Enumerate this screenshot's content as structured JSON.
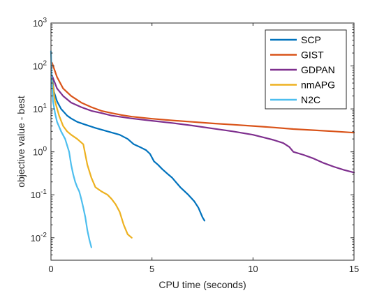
{
  "chart_data": {
    "type": "line",
    "xlabel": "CPU time (seconds)",
    "ylabel": "objective value - best",
    "xlim": [
      0,
      15
    ],
    "ylim": [
      0.003,
      1000
    ],
    "yscale": "log",
    "grid": false,
    "legend_position": "top-right",
    "x_ticks": [
      0,
      5,
      10,
      15
    ],
    "x_tick_labels": [
      "0",
      "5",
      "10",
      "15"
    ],
    "y_ticks": [
      0.01,
      0.1,
      1,
      10,
      100,
      1000
    ],
    "y_tick_labels": [
      {
        "base": "10",
        "exp": "-2"
      },
      {
        "base": "10",
        "exp": "-1"
      },
      {
        "base": "10",
        "exp": "0"
      },
      {
        "base": "10",
        "exp": "1"
      },
      {
        "base": "10",
        "exp": "2"
      },
      {
        "base": "10",
        "exp": "3"
      }
    ],
    "series": [
      {
        "name": "SCP",
        "color": "#0072BD",
        "x": [
          0.05,
          0.15,
          0.3,
          0.5,
          0.8,
          1.0,
          1.3,
          1.7,
          2.2,
          2.8,
          3.4,
          3.8,
          4.1,
          4.4,
          4.7,
          4.9,
          5.1,
          5.3,
          5.5,
          5.8,
          6.0,
          6.4,
          6.8,
          7.1,
          7.3,
          7.5,
          7.6
        ],
        "y": [
          60,
          25,
          15,
          10,
          7,
          6,
          5,
          4.3,
          3.6,
          3.0,
          2.5,
          2.0,
          1.5,
          1.3,
          1.1,
          0.9,
          0.6,
          0.5,
          0.4,
          0.3,
          0.25,
          0.15,
          0.1,
          0.07,
          0.05,
          0.03,
          0.025
        ]
      },
      {
        "name": "GIST",
        "color": "#D95319",
        "x": [
          0.05,
          0.3,
          0.6,
          1.0,
          1.5,
          2.0,
          2.5,
          3.0,
          3.5,
          4.0,
          5.0,
          6.0,
          7.0,
          8.0,
          9.0,
          10.0,
          11.0,
          12.0,
          13.0,
          14.0,
          15.0
        ],
        "y": [
          120,
          55,
          30,
          20,
          14,
          11,
          9,
          8,
          7.2,
          6.6,
          5.9,
          5.4,
          5.0,
          4.6,
          4.3,
          4.0,
          3.7,
          3.4,
          3.2,
          3.0,
          2.8
        ]
      },
      {
        "name": "GDPAN",
        "color": "#7E2F8E",
        "x": [
          0.05,
          0.3,
          0.6,
          1.0,
          1.5,
          2.0,
          2.5,
          3.0,
          4.0,
          5.0,
          6.0,
          7.0,
          8.0,
          9.0,
          10.0,
          11.0,
          11.5,
          11.8,
          12.0,
          12.5,
          13.0,
          13.5,
          14.0,
          14.5,
          15.0
        ],
        "y": [
          60,
          30,
          20,
          14,
          11,
          9,
          8,
          7,
          6,
          5.3,
          4.7,
          4.1,
          3.5,
          3.0,
          2.5,
          1.9,
          1.6,
          1.3,
          1.0,
          0.85,
          0.7,
          0.55,
          0.45,
          0.38,
          0.33
        ]
      },
      {
        "name": "nmAPG",
        "color": "#EDB120",
        "x": [
          0.05,
          0.2,
          0.4,
          0.6,
          0.8,
          1.0,
          1.3,
          1.6,
          1.8,
          2.0,
          2.2,
          2.5,
          2.8,
          3.0,
          3.2,
          3.4,
          3.6,
          3.8,
          4.0
        ],
        "y": [
          50,
          15,
          7,
          4,
          3,
          2.5,
          2.0,
          1.5,
          0.5,
          0.25,
          0.15,
          0.12,
          0.1,
          0.08,
          0.06,
          0.04,
          0.02,
          0.012,
          0.01
        ]
      },
      {
        "name": "N2C",
        "color": "#4DBEEE",
        "x": [
          0.0,
          0.05,
          0.1,
          0.2,
          0.3,
          0.5,
          0.7,
          0.9,
          1.0,
          1.1,
          1.2,
          1.3,
          1.4,
          1.5,
          1.6,
          1.7,
          1.8,
          1.9,
          2.0
        ],
        "y": [
          220,
          40,
          15,
          8,
          5,
          3,
          2,
          1.0,
          0.5,
          0.3,
          0.2,
          0.15,
          0.12,
          0.08,
          0.05,
          0.03,
          0.015,
          0.009,
          0.006
        ]
      }
    ]
  }
}
